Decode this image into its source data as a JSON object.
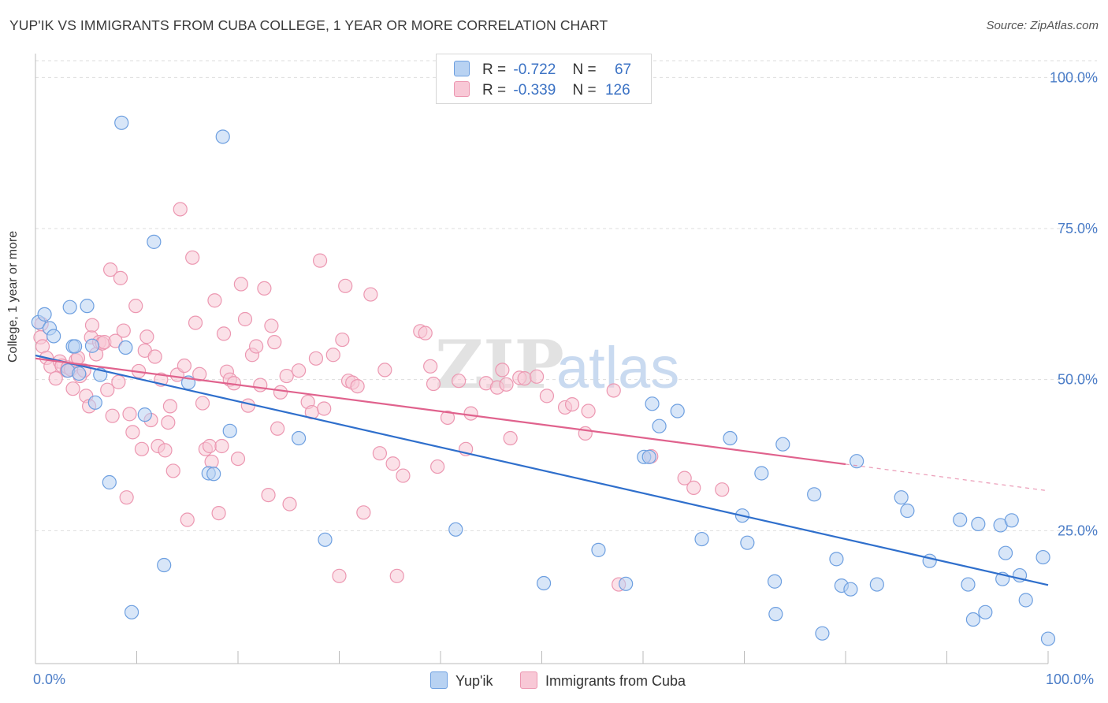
{
  "title": "YUP'IK VS IMMIGRANTS FROM CUBA COLLEGE, 1 YEAR OR MORE CORRELATION CHART",
  "source": "Source: ZipAtlas.com",
  "watermark": {
    "zip": "ZIP",
    "atlas": "atlas"
  },
  "legend": {
    "rows": [
      {
        "r_label": "R =",
        "r_value": "-0.722",
        "n_label": "N =",
        "n_value": "67"
      },
      {
        "r_label": "R =",
        "r_value": "-0.339",
        "n_label": "N =",
        "n_value": "126"
      }
    ]
  },
  "bottom_legend": [
    {
      "label": "Yup'ik"
    },
    {
      "label": "Immigrants from Cuba"
    }
  ],
  "colors": {
    "blue_fill": "#b8d2f2",
    "blue_stroke": "#6d9fe0",
    "blue_line": "#2f6fcc",
    "pink_fill": "#f8c8d6",
    "pink_stroke": "#ec97b1",
    "pink_line": "#e0628d",
    "grid": "#dddddd",
    "axis_text": "#4a7cc7"
  },
  "chart_data": {
    "type": "scatter",
    "title": "YUP'IK VS IMMIGRANTS FROM CUBA COLLEGE, 1 YEAR OR MORE CORRELATION CHART",
    "xlabel": "",
    "ylabel": "College, 1 year or more",
    "xlim": [
      0,
      100
    ],
    "ylim": [
      3,
      105
    ],
    "x_tick_labels": [
      "0.0%",
      "100.0%"
    ],
    "y_ticks": [
      {
        "value": 25,
        "label": "25.0%"
      },
      {
        "value": 50,
        "label": "50.0%"
      },
      {
        "value": 75,
        "label": "75.0%"
      },
      {
        "value": 100,
        "label": "100.0%"
      }
    ],
    "series": [
      {
        "name": "Yup'ik",
        "R": -0.722,
        "N": 67,
        "trend": {
          "x0": 0,
          "y0": 54,
          "x1": 100,
          "y1": 16
        },
        "points": [
          [
            0.3,
            59.5
          ],
          [
            0.9,
            60.8
          ],
          [
            1.4,
            58.5
          ],
          [
            1.8,
            57.2
          ],
          [
            3.2,
            51.5
          ],
          [
            3.4,
            62
          ],
          [
            3.7,
            55.5
          ],
          [
            3.9,
            55.5
          ],
          [
            4.3,
            51
          ],
          [
            5.1,
            62.2
          ],
          [
            5.6,
            55.6
          ],
          [
            5.9,
            46.2
          ],
          [
            6.4,
            50.8
          ],
          [
            7.3,
            33
          ],
          [
            8.5,
            92.5
          ],
          [
            8.9,
            55.3
          ],
          [
            9.5,
            11.5
          ],
          [
            10.8,
            44.2
          ],
          [
            11.7,
            72.8
          ],
          [
            12.7,
            19.3
          ],
          [
            15.1,
            49.5
          ],
          [
            17.1,
            34.5
          ],
          [
            17.6,
            34.4
          ],
          [
            18.5,
            90.2
          ],
          [
            19.2,
            41.5
          ],
          [
            26,
            40.3
          ],
          [
            28.6,
            23.5
          ],
          [
            41.5,
            25.2
          ],
          [
            50.2,
            16.3
          ],
          [
            55.6,
            21.8
          ],
          [
            58.3,
            16.2
          ],
          [
            60.1,
            37.2
          ],
          [
            60.6,
            37.2
          ],
          [
            60.9,
            46
          ],
          [
            61.6,
            42.3
          ],
          [
            63.4,
            44.8
          ],
          [
            65.8,
            23.6
          ],
          [
            68.6,
            40.3
          ],
          [
            69.8,
            27.5
          ],
          [
            70.3,
            23
          ],
          [
            71.7,
            34.5
          ],
          [
            73,
            16.6
          ],
          [
            73.1,
            11.2
          ],
          [
            73.8,
            39.3
          ],
          [
            76.9,
            31
          ],
          [
            77.7,
            8
          ],
          [
            79.1,
            20.3
          ],
          [
            79.6,
            15.9
          ],
          [
            80.5,
            15.3
          ],
          [
            81.1,
            36.5
          ],
          [
            83.1,
            16.1
          ],
          [
            85.5,
            30.5
          ],
          [
            86.1,
            28.3
          ],
          [
            88.3,
            20
          ],
          [
            91.3,
            26.8
          ],
          [
            92.1,
            16.1
          ],
          [
            92.6,
            10.3
          ],
          [
            93.1,
            26.1
          ],
          [
            93.8,
            11.5
          ],
          [
            95.3,
            25.9
          ],
          [
            95.5,
            17
          ],
          [
            95.8,
            21.3
          ],
          [
            96.4,
            26.7
          ],
          [
            97.2,
            17.6
          ],
          [
            97.8,
            13.5
          ],
          [
            99.5,
            20.6
          ],
          [
            100,
            7.1
          ]
        ]
      },
      {
        "name": "Immigrants from Cuba",
        "R": -0.339,
        "N": 126,
        "trend": {
          "x0": 0,
          "y0": 53.5,
          "x1": 80,
          "y1": 36,
          "dashed_to": {
            "x": 100,
            "y": 31.6
          }
        },
        "points": [
          [
            0.5,
            57
          ],
          [
            0.6,
            59.2
          ],
          [
            0.7,
            55.5
          ],
          [
            1.1,
            53.6
          ],
          [
            1.5,
            52.2
          ],
          [
            2,
            50.2
          ],
          [
            2.4,
            53
          ],
          [
            2.6,
            52.3
          ],
          [
            3.1,
            51.5
          ],
          [
            3.2,
            52
          ],
          [
            3.5,
            51.7
          ],
          [
            3.7,
            48.5
          ],
          [
            4,
            53.2
          ],
          [
            4.2,
            53.6
          ],
          [
            4.4,
            50.6
          ],
          [
            4.8,
            51.5
          ],
          [
            5,
            47.3
          ],
          [
            5.3,
            45.6
          ],
          [
            5.5,
            57
          ],
          [
            5.6,
            59
          ],
          [
            6,
            54.2
          ],
          [
            6.3,
            56.2
          ],
          [
            6.6,
            56
          ],
          [
            6.8,
            56.2
          ],
          [
            7.1,
            48.3
          ],
          [
            7.4,
            68.2
          ],
          [
            7.6,
            44
          ],
          [
            7.9,
            56.4
          ],
          [
            8.2,
            49.6
          ],
          [
            8.4,
            66.8
          ],
          [
            8.7,
            58.1
          ],
          [
            9,
            30.5
          ],
          [
            9.3,
            44.3
          ],
          [
            9.6,
            41.3
          ],
          [
            9.9,
            62.2
          ],
          [
            10.2,
            51.4
          ],
          [
            10.5,
            38.5
          ],
          [
            10.8,
            54.8
          ],
          [
            11,
            57.1
          ],
          [
            11.4,
            43.3
          ],
          [
            11.8,
            53.8
          ],
          [
            12.1,
            39
          ],
          [
            12.4,
            50
          ],
          [
            12.8,
            38.3
          ],
          [
            13.1,
            42.9
          ],
          [
            13.3,
            45.6
          ],
          [
            13.6,
            34.9
          ],
          [
            14,
            50.8
          ],
          [
            14.3,
            78.2
          ],
          [
            14.7,
            52.3
          ],
          [
            15,
            26.8
          ],
          [
            15.5,
            70.2
          ],
          [
            15.8,
            59.4
          ],
          [
            16.2,
            50.9
          ],
          [
            16.5,
            46.1
          ],
          [
            16.8,
            38.5
          ],
          [
            17.2,
            39
          ],
          [
            17.4,
            36.4
          ],
          [
            17.7,
            63.1
          ],
          [
            18.1,
            27.9
          ],
          [
            18.4,
            39
          ],
          [
            18.6,
            57.6
          ],
          [
            18.9,
            51.3
          ],
          [
            19.2,
            50
          ],
          [
            19.6,
            49.4
          ],
          [
            20,
            36.9
          ],
          [
            20.3,
            65.8
          ],
          [
            20.7,
            60
          ],
          [
            21,
            45.7
          ],
          [
            21.4,
            54.1
          ],
          [
            21.8,
            55.5
          ],
          [
            22.2,
            49.1
          ],
          [
            22.6,
            65.1
          ],
          [
            23,
            30.9
          ],
          [
            23.3,
            58.9
          ],
          [
            23.6,
            56.2
          ],
          [
            23.9,
            41.9
          ],
          [
            24.2,
            47.9
          ],
          [
            24.8,
            50.6
          ],
          [
            25.1,
            29.4
          ],
          [
            26,
            51.5
          ],
          [
            26.9,
            46.3
          ],
          [
            27.3,
            44.6
          ],
          [
            27.7,
            53.5
          ],
          [
            28.1,
            69.7
          ],
          [
            28.5,
            45.2
          ],
          [
            29.4,
            54.1
          ],
          [
            30,
            17.5
          ],
          [
            30.3,
            56.6
          ],
          [
            30.6,
            65.5
          ],
          [
            30.9,
            49.8
          ],
          [
            31.3,
            49.5
          ],
          [
            31.8,
            48.9
          ],
          [
            32.4,
            28
          ],
          [
            33.1,
            64.1
          ],
          [
            34,
            37.8
          ],
          [
            34.5,
            51.6
          ],
          [
            35.3,
            36.1
          ],
          [
            35.7,
            17.5
          ],
          [
            36.3,
            34.1
          ],
          [
            38,
            58
          ],
          [
            38.5,
            57.7
          ],
          [
            39,
            52.2
          ],
          [
            39.3,
            49.3
          ],
          [
            39.7,
            35.6
          ],
          [
            40.7,
            43.7
          ],
          [
            41.8,
            49.8
          ],
          [
            42.5,
            38.5
          ],
          [
            43,
            44.4
          ],
          [
            44.5,
            49.4
          ],
          [
            45.6,
            48.7
          ],
          [
            46.1,
            51.6
          ],
          [
            46.5,
            49.2
          ],
          [
            46.9,
            40.3
          ],
          [
            47.8,
            50.3
          ],
          [
            48.3,
            50.2
          ],
          [
            49.5,
            50.5
          ],
          [
            50.5,
            47.3
          ],
          [
            52.3,
            45.4
          ],
          [
            53,
            45.9
          ],
          [
            54.3,
            41.1
          ],
          [
            54.6,
            44.8
          ],
          [
            57.1,
            48.2
          ],
          [
            57.6,
            16.1
          ],
          [
            60.8,
            37.3
          ],
          [
            64.1,
            33.7
          ],
          [
            65,
            32.1
          ],
          [
            67.8,
            31.8
          ]
        ]
      }
    ]
  }
}
